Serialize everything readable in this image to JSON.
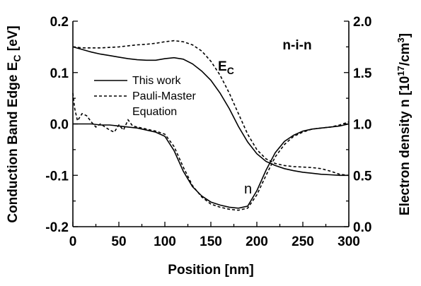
{
  "chart_data": {
    "type": "line",
    "xlabel": "Position [nm]",
    "ylabel_left": "Conduction Band Edge E",
    "ylabel_left_sub": "C",
    "ylabel_left_unit": " [eV]",
    "ylabel_right": "Electron density n [10",
    "ylabel_right_sup1": "17",
    "ylabel_right_mid": "/cm",
    "ylabel_right_sup2": "3",
    "ylabel_right_end": "]",
    "xlim": [
      0,
      300
    ],
    "ylim_left": [
      -0.2,
      0.2
    ],
    "ylim_right": [
      0.0,
      2.0
    ],
    "x_ticks": [
      "0",
      "50",
      "100",
      "150",
      "200",
      "250",
      "300"
    ],
    "y_left_ticks": [
      "-0.2",
      "-0.1",
      "0.0",
      "0.1",
      "0.2"
    ],
    "y_right_ticks": [
      "0.0",
      "0.5",
      "1.0",
      "1.5",
      "2.0"
    ],
    "grid": false,
    "legend_position": "upper-left",
    "legend": [
      {
        "label": "This work",
        "style": "solid"
      },
      {
        "label": "Pauli-Master",
        "label2": "Equation",
        "style": "dashed"
      }
    ],
    "annotations": {
      "device": "n-i-n",
      "ec_label": "E",
      "ec_sub": "C",
      "n_label": "n"
    },
    "series": [
      {
        "name": "This work",
        "quantity": "E_C",
        "axis": "left",
        "style": "solid",
        "x": [
          0,
          10,
          20,
          30,
          40,
          50,
          60,
          70,
          80,
          90,
          100,
          110,
          120,
          130,
          140,
          150,
          160,
          170,
          180,
          190,
          200,
          210,
          220,
          230,
          240,
          250,
          260,
          270,
          280,
          290,
          300
        ],
        "y": [
          0.15,
          0.145,
          0.14,
          0.136,
          0.133,
          0.13,
          0.127,
          0.125,
          0.124,
          0.124,
          0.127,
          0.129,
          0.126,
          0.117,
          0.103,
          0.085,
          0.06,
          0.03,
          -0.005,
          -0.035,
          -0.058,
          -0.073,
          -0.081,
          -0.087,
          -0.091,
          -0.094,
          -0.096,
          -0.098,
          -0.099,
          -0.1,
          -0.1
        ]
      },
      {
        "name": "Pauli-Master Equation",
        "quantity": "E_C",
        "axis": "left",
        "style": "dashed",
        "x": [
          0,
          10,
          20,
          30,
          40,
          50,
          60,
          70,
          80,
          90,
          100,
          110,
          120,
          130,
          140,
          150,
          160,
          170,
          180,
          190,
          200,
          210,
          220,
          230,
          240,
          250,
          260,
          270,
          280,
          290,
          300
        ],
        "y": [
          0.15,
          0.148,
          0.148,
          0.148,
          0.149,
          0.15,
          0.152,
          0.154,
          0.155,
          0.157,
          0.16,
          0.162,
          0.16,
          0.154,
          0.142,
          0.122,
          0.095,
          0.06,
          0.02,
          -0.02,
          -0.05,
          -0.068,
          -0.077,
          -0.081,
          -0.083,
          -0.084,
          -0.085,
          -0.087,
          -0.092,
          -0.098,
          -0.1
        ]
      },
      {
        "name": "This work",
        "quantity": "n",
        "axis": "right",
        "style": "solid",
        "x": [
          0,
          10,
          20,
          30,
          40,
          50,
          60,
          70,
          80,
          90,
          100,
          110,
          120,
          130,
          140,
          150,
          160,
          170,
          180,
          190,
          200,
          210,
          220,
          230,
          240,
          250,
          260,
          270,
          280,
          290,
          300
        ],
        "y": [
          1.0,
          1.0,
          1.0,
          0.99,
          0.99,
          0.98,
          0.97,
          0.96,
          0.94,
          0.92,
          0.88,
          0.74,
          0.54,
          0.39,
          0.3,
          0.24,
          0.21,
          0.19,
          0.18,
          0.2,
          0.35,
          0.55,
          0.72,
          0.83,
          0.89,
          0.93,
          0.95,
          0.96,
          0.97,
          0.98,
          1.0
        ]
      },
      {
        "name": "Pauli-Master Equation",
        "quantity": "n",
        "axis": "right",
        "style": "dashed",
        "x": [
          0,
          2,
          5,
          10,
          15,
          20,
          25,
          30,
          35,
          40,
          45,
          50,
          55,
          60,
          65,
          70,
          80,
          90,
          100,
          110,
          120,
          130,
          140,
          150,
          160,
          170,
          180,
          190,
          200,
          210,
          220,
          230,
          240,
          250,
          260,
          270,
          280,
          290,
          300
        ],
        "y": [
          1.3,
          1.15,
          1.03,
          1.1,
          1.08,
          1.02,
          0.97,
          1.0,
          0.97,
          0.94,
          0.92,
          0.99,
          0.94,
          1.04,
          0.98,
          0.97,
          0.95,
          0.93,
          0.9,
          0.78,
          0.58,
          0.4,
          0.29,
          0.22,
          0.19,
          0.17,
          0.16,
          0.18,
          0.31,
          0.5,
          0.68,
          0.8,
          0.88,
          0.92,
          0.95,
          0.96,
          0.97,
          0.99,
          1.02
        ]
      }
    ]
  }
}
